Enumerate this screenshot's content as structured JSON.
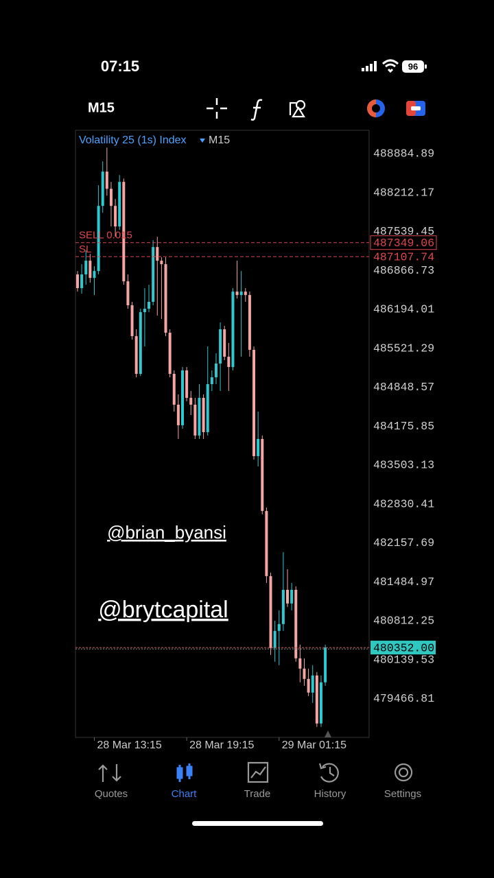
{
  "status_bar": {
    "time": "07:15",
    "battery": "96"
  },
  "toolbar": {
    "timeframe": "M15"
  },
  "chart_data": {
    "type": "candlestick",
    "title": "Volatility 25 (1s) Index",
    "subtitle": "M15",
    "categories": [
      null,
      null,
      null,
      null,
      "28 Mar 13:15",
      null,
      null,
      null,
      null,
      null,
      null,
      null,
      null,
      null,
      null,
      null,
      null,
      null,
      null,
      null,
      null,
      null,
      null,
      null,
      null,
      null,
      "28 Mar 19:15",
      null,
      null,
      null,
      null,
      null,
      null,
      null,
      null,
      null,
      null,
      null,
      null,
      null,
      null,
      null,
      null,
      null,
      null,
      null,
      null,
      null,
      "29 Mar 01:15",
      null,
      null,
      null,
      null,
      null,
      null,
      null,
      null,
      null,
      null,
      null
    ],
    "open": [
      486800,
      486563,
      486800,
      487037,
      486740,
      486859,
      487984,
      488577,
      488280,
      487984,
      487629,
      488399,
      486681,
      486267,
      485733,
      485082,
      486148,
      486207,
      486326,
      487273,
      487037,
      486977,
      485793,
      485082,
      484549,
      484194,
      485141,
      484667,
      484549,
      484016,
      484667,
      484075,
      484904,
      485023,
      485260,
      485852,
      485378,
      485200,
      486503,
      486444,
      486503,
      486444,
      485497,
      483660,
      483957,
      482713,
      481587,
      480344,
      480640,
      480758,
      481350,
      481114,
      481350,
      480166,
      479988,
      479810,
      479574,
      479870,
      479040,
      479751
    ],
    "high": [
      486859,
      486977,
      487214,
      487155,
      486942,
      488340,
      488754,
      488991,
      488399,
      488103,
      488517,
      488458,
      486800,
      486326,
      485852,
      486207,
      486563,
      486622,
      487392,
      487451,
      487096,
      487096,
      485852,
      485141,
      484727,
      485200,
      485200,
      484786,
      484667,
      484904,
      484727,
      485556,
      485141,
      485437,
      485970,
      485911,
      485615,
      486563,
      487037,
      486859,
      486563,
      486503,
      485556,
      484430,
      484016,
      482772,
      481647,
      480817,
      480995,
      482002,
      481706,
      481469,
      481410,
      480403,
      480166,
      479988,
      480047,
      479929,
      479870,
      480403
    ],
    "low": [
      486503,
      486468,
      486622,
      486657,
      486444,
      486800,
      487866,
      488162,
      487629,
      487451,
      487570,
      486622,
      486207,
      485674,
      485023,
      485046,
      485556,
      486148,
      486267,
      486089,
      486030,
      485733,
      485023,
      484430,
      483957,
      484134,
      484608,
      484371,
      483957,
      483957,
      483957,
      484016,
      484786,
      484904,
      484786,
      485319,
      484786,
      485141,
      486385,
      485378,
      486326,
      485378,
      483601,
      483483,
      482654,
      481469,
      480225,
      480107,
      480047,
      480640,
      481054,
      480995,
      480107,
      479751,
      479692,
      479514,
      479396,
      478981,
      478981,
      479692
    ],
    "close": [
      486563,
      486800,
      487037,
      486740,
      486859,
      487984,
      488577,
      488280,
      487984,
      487629,
      488399,
      486681,
      486267,
      485733,
      485082,
      486148,
      486207,
      486326,
      487273,
      487037,
      486977,
      485793,
      485082,
      484549,
      484194,
      485141,
      484667,
      484549,
      484016,
      484667,
      484075,
      484904,
      485023,
      485260,
      485852,
      485378,
      485200,
      486503,
      486444,
      486503,
      486444,
      485497,
      483660,
      483957,
      482713,
      481587,
      480344,
      480640,
      480758,
      481350,
      481114,
      481350,
      480166,
      479988,
      479810,
      479574,
      479870,
      479040,
      479751,
      480352
    ],
    "up_color": "#2ec8d0",
    "down_color": "#f4a6a4",
    "ylim": [
      478800,
      489290
    ],
    "yticks": [
      488884.89,
      488212.17,
      487539.45,
      486866.73,
      486194.01,
      485521.29,
      484848.57,
      484175.85,
      483503.13,
      482830.41,
      482157.69,
      481484.97,
      480812.25,
      480139.53,
      479466.81
    ],
    "grid": false,
    "orders": [
      {
        "label": "SELL 0.015",
        "price": 487349.06,
        "color": "#e0474c"
      },
      {
        "label": "SL",
        "price": 487107.74,
        "color": "#e0474c"
      }
    ],
    "current_price": {
      "value": 480352,
      "label": "480352.00",
      "color": "#2ec8c0"
    }
  },
  "watermarks": [
    "@brian_byansi",
    "@brytcapital"
  ],
  "nav": {
    "items": [
      "Quotes",
      "Chart",
      "Trade",
      "History",
      "Settings"
    ],
    "active": 1
  }
}
